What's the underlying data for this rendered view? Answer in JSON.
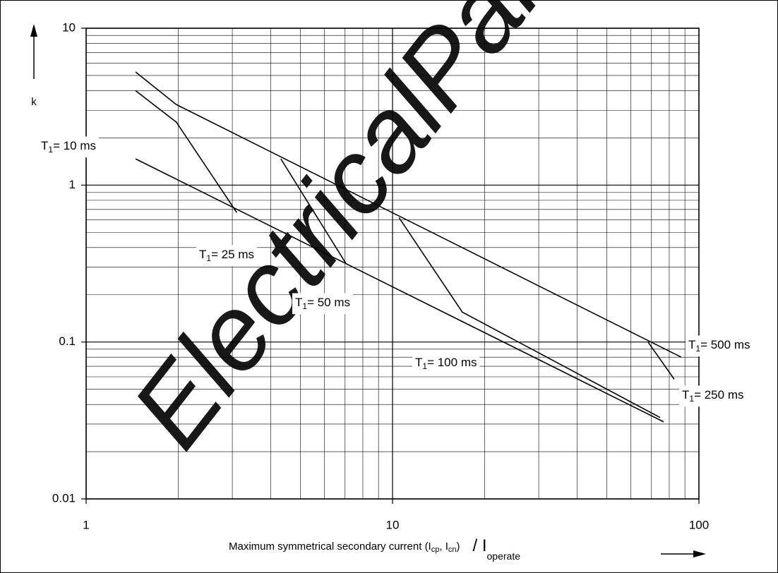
{
  "chart_data": {
    "type": "line",
    "watermark": "ElectricalPart",
    "y_label": "k",
    "x_label": {
      "text": "Maximum symmetrical secondary current (I",
      "sub1": "cp",
      "mid": ", I",
      "sub2": "cn",
      "end": ")",
      "slash": "/ I",
      "sub3": "operate"
    },
    "log_x": true,
    "log_y": true,
    "grid": true,
    "xlim": [
      1,
      100
    ],
    "xticks": [
      1,
      10,
      100
    ],
    "ylim": [
      0.01,
      10
    ],
    "yticks": [
      0.01,
      0.1,
      1,
      10
    ],
    "series": [
      {
        "color": "#000000",
        "x": [
          1.45,
          76.7
        ],
        "values": [
          1.47,
          0.031
        ]
      },
      {
        "color": "#000000",
        "x": [
          1.45,
          1.97,
          3.1
        ],
        "values": [
          4.0,
          2.52,
          0.67
        ]
      },
      {
        "color": "#000000",
        "x": [
          4.32,
          7.05
        ],
        "values": [
          1.47,
          0.316
        ]
      },
      {
        "color": "#000000",
        "x": [
          10.5,
          16.9,
          74.7
        ],
        "values": [
          0.62,
          0.155,
          0.033
        ]
      },
      {
        "color": "#000000",
        "x": [
          68.2,
          83
        ],
        "values": [
          0.1,
          0.058
        ]
      },
      {
        "color": "#000000",
        "x": [
          1.45,
          1.97,
          87.6
        ],
        "values": [
          5.26,
          3.26,
          0.08
        ]
      }
    ],
    "annotations": [
      {
        "main": "T",
        "sub": "1",
        "rest": "= 10 ms"
      },
      {
        "main": "T",
        "sub": "1",
        "rest": "= 25 ms"
      },
      {
        "main": "T",
        "sub": "1",
        "rest": "= 50 ms"
      },
      {
        "main": "T",
        "sub": "1",
        "rest": "= 100 ms"
      },
      {
        "main": "T",
        "sub": "1",
        "rest": "= 250 ms"
      },
      {
        "main": "T",
        "sub": "1",
        "rest": "= 500 ms"
      }
    ]
  }
}
